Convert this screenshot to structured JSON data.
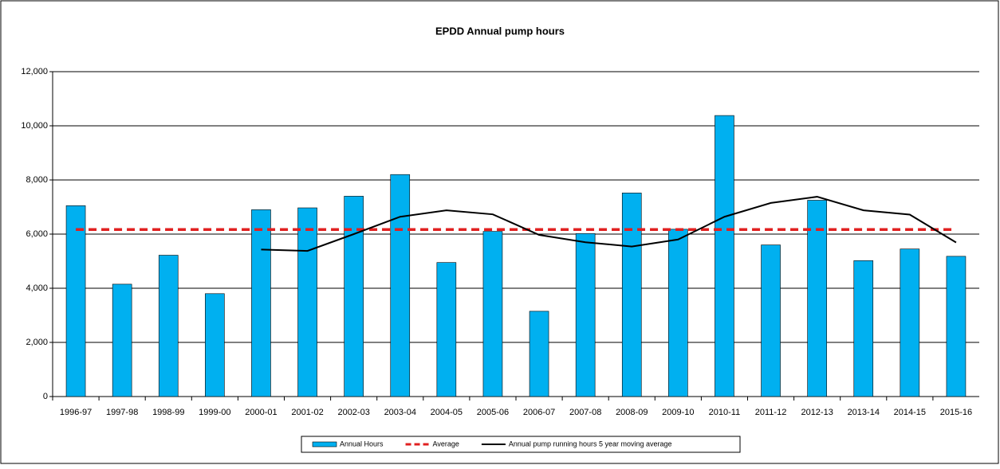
{
  "chart_data": {
    "type": "bar",
    "title": "EPDD Annual pump hours",
    "categories": [
      "1996-97",
      "1997-98",
      "1998-99",
      "1999-00",
      "2000-01",
      "2001-02",
      "2002-03",
      "2003-04",
      "2004-05",
      "2005-06",
      "2006-07",
      "2007-08",
      "2008-09",
      "2009-10",
      "2010-11",
      "2011-12",
      "2012-13",
      "2013-14",
      "2014-15",
      "2015-16"
    ],
    "series": [
      {
        "name": "Annual Hours",
        "type": "bar",
        "color": "#00b0f0",
        "values": [
          7050,
          4150,
          5220,
          3800,
          6900,
          6970,
          7400,
          8200,
          4950,
          6100,
          3150,
          6020,
          7520,
          6180,
          10380,
          5600,
          7250,
          5020,
          5450,
          5180
        ]
      },
      {
        "name": "Average",
        "type": "dashed-line",
        "color": "#e02020",
        "values": [
          6170,
          6170,
          6170,
          6170,
          6170,
          6170,
          6170,
          6170,
          6170,
          6170,
          6170,
          6170,
          6170,
          6170,
          6170,
          6170,
          6170,
          6170,
          6170,
          6170
        ]
      },
      {
        "name": "Annual pump running hours 5 year moving average",
        "type": "line",
        "color": "#000000",
        "values": [
          null,
          null,
          null,
          null,
          5430,
          5380,
          6000,
          6640,
          6880,
          6730,
          5970,
          5700,
          5540,
          5800,
          6640,
          7150,
          7380,
          6880,
          6720,
          5690
        ]
      }
    ],
    "ylim": [
      0,
      12000
    ],
    "yticks": [
      0,
      {
        "value": 2000,
        "label": "2,000"
      },
      {
        "value": 4000,
        "label": "4,000"
      },
      {
        "value": 6000,
        "label": "6,000"
      },
      {
        "value": 8000,
        "label": "8,000"
      },
      {
        "value": 10000,
        "label": "10,000"
      },
      {
        "value": 12000,
        "label": "12,000"
      }
    ],
    "grid": true
  }
}
